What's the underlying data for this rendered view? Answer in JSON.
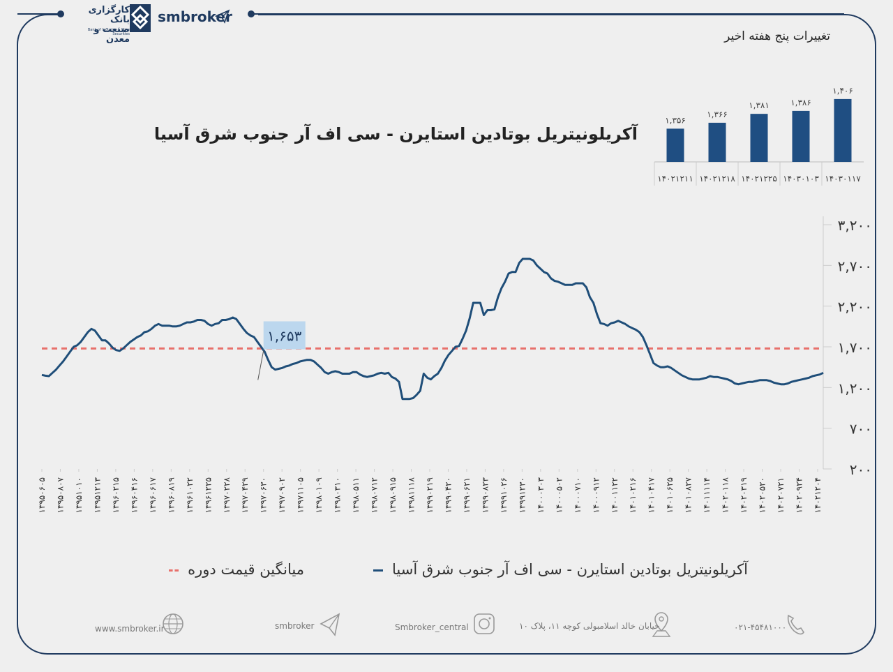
{
  "header": {
    "bank_name_line1": "کارگزاری بانک",
    "bank_name_line2": "صنعت و معدن",
    "bank_subtitle": "Bank of Industry & Mine Securities",
    "brand": "smbroker"
  },
  "five_week": {
    "title": "تغییرات پنج هفته اخیر",
    "chart_color": "#1f4e82"
  },
  "main_title": "آکریلونیتریل بوتادین استایرن - سی اف آر جنوب شرق آسیا",
  "legend": {
    "series_label": "آکریلونیتریل بوتادین استایرن - سی اف آر جنوب شرق آسیا",
    "avg_label": "میانگین قیمت دوره"
  },
  "footer": {
    "phone": "۰۲۱-۴۵۴۸۱۰۰۰",
    "address": "خیابان خالد اسلامبولی کوچه ۱۱، پلاک ۱۰",
    "instagram": "Smbroker_central",
    "telegram": "smbroker",
    "website": "www.smbroker.ir"
  },
  "colors": {
    "navy": "#1f3a5f",
    "series": "#1f4e79",
    "average": "#e8706b",
    "callout_bg": "#bcd7ee"
  },
  "chart_data": [
    {
      "type": "bar",
      "title": "تغییرات پنج هفته اخیر",
      "categories": [
        "۱۴۰۲۱۲۱۱",
        "۱۴۰۲۱۲۱۸",
        "۱۴۰۲۱۲۲۵",
        "۱۴۰۳۰۱۰۳",
        "۱۴۰۳۰۱۱۷"
      ],
      "labels": [
        "۱,۳۵۶",
        "۱,۳۶۶",
        "۱,۳۸۱",
        "۱,۳۸۶",
        "۱,۴۰۶"
      ],
      "values": [
        1356,
        1366,
        1381,
        1386,
        1406
      ],
      "ylim": [
        1300,
        1420
      ]
    },
    {
      "type": "line",
      "title": "آکریلونیتریل بوتادین استایرن - سی اف آر جنوب شرق آسیا",
      "ylim": [
        200,
        3200
      ],
      "yticks": [
        200,
        700,
        1200,
        1700,
        2200,
        2700,
        3200
      ],
      "ytick_labels": [
        "۲۰۰",
        "۷۰۰",
        "۱,۲۰۰",
        "۱,۷۰۰",
        "۲,۲۰۰",
        "۲,۷۰۰",
        "۳,۲۰۰"
      ],
      "x_tick_labels": [
        "۱۳۹۵۰۶۰۵",
        "۱۳۹۵۰۸۰۷",
        "۱۳۹۵۱۰۱۰",
        "۱۳۹۵۱۲۱۳",
        "۱۳۹۶۰۲۱۵",
        "۱۳۹۶۰۴۱۶",
        "۱۳۹۶۰۶۱۷",
        "۱۳۹۶۰۸۱۹",
        "۱۳۹۶۱۰۲۲",
        "۱۳۹۶۱۲۲۵",
        "۱۳۹۷۰۲۲۸",
        "۱۳۹۷۰۴۲۹",
        "۱۳۹۷۰۶۳۰",
        "۱۳۹۷۰۹۰۲",
        "۱۳۹۷۱۱۰۵",
        "۱۳۹۸۰۱۰۹",
        "۱۳۹۸۰۳۱۰",
        "۱۳۹۸۰۵۱۱",
        "۱۳۹۸۰۷۱۲",
        "۱۳۹۸۰۹۱۵",
        "۱۳۹۸۱۱۱۸",
        "۱۳۹۹۰۲۱۹",
        "۱۳۹۹۰۴۲۰",
        "۱۳۹۹۰۶۲۱",
        "۱۳۹۹۰۸۲۳",
        "۱۳۹۹۱۰۲۶",
        "۱۳۹۹۱۲۳۰",
        "۱۴۰۰۰۳۰۳",
        "۱۴۰۰۰۵۰۲",
        "۱۴۰۰۰۷۱۰",
        "۱۴۰۰۰۹۱۲",
        "۱۴۰۰۱۱۲۲",
        "۱۴۰۱۰۲۱۶",
        "۱۴۰۱۰۴۱۷",
        "۱۴۰۱۰۶۲۵",
        "۱۴۰۱۰۸۲۷",
        "۱۴۰۱۱۱۱۴",
        "۱۴۰۲۰۱۱۸",
        "۱۴۰۲۰۳۱۹",
        "۱۴۰۲۰۵۲۰",
        "۱۴۰۲۰۷۲۱",
        "۱۴۰۲۰۹۲۴",
        "۱۴۰۲۱۲۰۴"
      ],
      "average": 1680,
      "annotation": {
        "label": "۱,۶۵۳",
        "index": 12,
        "value": 1653
      },
      "series": [
        {
          "name": "آکریلونیتریل بوتادین استایرن - سی اف آر جنوب شرق آسیا",
          "values": [
            1355,
            1345,
            1340,
            1380,
            1420,
            1470,
            1520,
            1580,
            1640,
            1700,
            1720,
            1760,
            1820,
            1880,
            1920,
            1900,
            1840,
            1780,
            1780,
            1740,
            1690,
            1660,
            1650,
            1680,
            1720,
            1760,
            1790,
            1820,
            1840,
            1880,
            1890,
            1920,
            1960,
            1980,
            1960,
            1960,
            1960,
            1950,
            1950,
            1960,
            1980,
            2000,
            2000,
            2010,
            2030,
            2030,
            2020,
            1980,
            1960,
            1980,
            1990,
            2030,
            2030,
            2040,
            2060,
            2040,
            1980,
            1920,
            1870,
            1840,
            1820,
            1760,
            1700,
            1640,
            1540,
            1450,
            1420,
            1430,
            1440,
            1460,
            1470,
            1490,
            1500,
            1520,
            1530,
            1540,
            1540,
            1520,
            1480,
            1440,
            1390,
            1370,
            1390,
            1400,
            1390,
            1370,
            1370,
            1370,
            1390,
            1390,
            1360,
            1340,
            1330,
            1340,
            1350,
            1370,
            1380,
            1370,
            1380,
            1330,
            1310,
            1270,
            1060,
            1060,
            1060,
            1070,
            1110,
            1160,
            1370,
            1320,
            1300,
            1340,
            1370,
            1440,
            1530,
            1600,
            1650,
            1700,
            1710,
            1800,
            1900,
            2050,
            2240,
            2240,
            2240,
            2090,
            2150,
            2150,
            2160,
            2310,
            2420,
            2500,
            2600,
            2620,
            2620,
            2730,
            2780,
            2780,
            2780,
            2760,
            2700,
            2660,
            2620,
            2600,
            2540,
            2510,
            2500,
            2480,
            2460,
            2460,
            2460,
            2480,
            2480,
            2480,
            2430,
            2310,
            2240,
            2100,
            1990,
            1980,
            1960,
            1990,
            2000,
            2020,
            2000,
            1980,
            1950,
            1930,
            1910,
            1880,
            1820,
            1720,
            1610,
            1500,
            1470,
            1450,
            1450,
            1460,
            1440,
            1410,
            1380,
            1350,
            1330,
            1310,
            1300,
            1300,
            1300,
            1310,
            1320,
            1340,
            1330,
            1330,
            1320,
            1310,
            1300,
            1280,
            1250,
            1240,
            1250,
            1260,
            1270,
            1270,
            1280,
            1290,
            1290,
            1290,
            1280,
            1260,
            1250,
            1240,
            1240,
            1250,
            1270,
            1280,
            1290,
            1300,
            1310,
            1320,
            1340,
            1350,
            1360,
            1380
          ]
        }
      ]
    }
  ]
}
